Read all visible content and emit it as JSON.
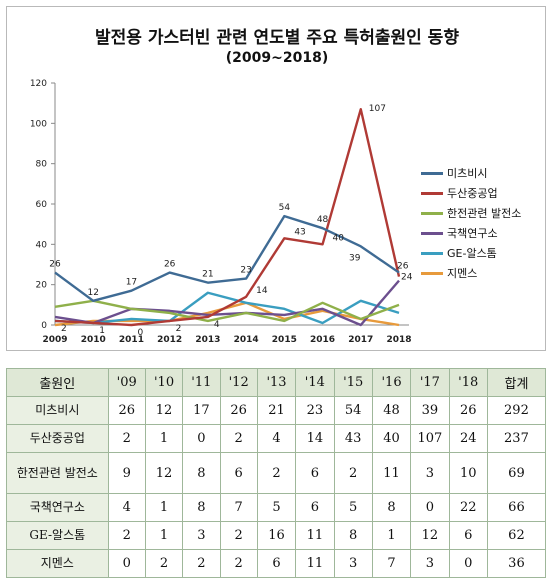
{
  "chart_data": {
    "type": "line",
    "title": "발전용 가스터빈 관련 연도별 주요 특허출원인 동향",
    "subtitle": "(2009~2018)",
    "categories": [
      "2009",
      "2010",
      "2011",
      "2012",
      "2013",
      "2014",
      "2015",
      "2016",
      "2017",
      "2018"
    ],
    "ylim": [
      0,
      120
    ],
    "yticks": [
      0,
      20,
      40,
      60,
      80,
      100,
      120
    ],
    "grid": false,
    "legend_position": "right",
    "series": [
      {
        "name": "미츠비시",
        "color": "#3f6b94",
        "values": [
          26,
          12,
          17,
          26,
          21,
          23,
          54,
          48,
          39,
          26
        ]
      },
      {
        "name": "두산중공업",
        "color": "#b03a35",
        "values": [
          2,
          1,
          0,
          2,
          4,
          14,
          43,
          40,
          107,
          24
        ]
      },
      {
        "name": "한전관련 발전소",
        "color": "#8fb04a",
        "values": [
          9,
          12,
          8,
          6,
          2,
          6,
          2,
          11,
          3,
          10
        ]
      },
      {
        "name": "국책연구소",
        "color": "#6c4f8e",
        "values": [
          4,
          1,
          8,
          7,
          5,
          6,
          5,
          8,
          0,
          22
        ]
      },
      {
        "name": "GE-알스톰",
        "color": "#3a9ec0",
        "values": [
          2,
          1,
          3,
          2,
          16,
          11,
          8,
          1,
          12,
          6
        ]
      },
      {
        "name": "지멘스",
        "color": "#e79a3c",
        "values": [
          0,
          2,
          2,
          2,
          6,
          11,
          3,
          7,
          3,
          0
        ]
      }
    ],
    "data_labels": [
      {
        "series": 0,
        "index": 0,
        "text": "26"
      },
      {
        "series": 0,
        "index": 1,
        "text": "12"
      },
      {
        "series": 0,
        "index": 2,
        "text": "17"
      },
      {
        "series": 0,
        "index": 3,
        "text": "26"
      },
      {
        "series": 0,
        "index": 4,
        "text": "21"
      },
      {
        "series": 0,
        "index": 5,
        "text": "23"
      },
      {
        "series": 0,
        "index": 6,
        "text": "54"
      },
      {
        "series": 0,
        "index": 7,
        "text": "48"
      },
      {
        "series": 0,
        "index": 8,
        "text": "39"
      },
      {
        "series": 0,
        "index": 9,
        "text": "26"
      },
      {
        "series": 1,
        "index": 0,
        "text": "2"
      },
      {
        "series": 1,
        "index": 1,
        "text": "1"
      },
      {
        "series": 1,
        "index": 2,
        "text": "0"
      },
      {
        "series": 1,
        "index": 3,
        "text": "2"
      },
      {
        "series": 1,
        "index": 4,
        "text": "4"
      },
      {
        "series": 1,
        "index": 5,
        "text": "14"
      },
      {
        "series": 1,
        "index": 6,
        "text": "43"
      },
      {
        "series": 1,
        "index": 7,
        "text": "40"
      },
      {
        "series": 1,
        "index": 8,
        "text": "107"
      },
      {
        "series": 1,
        "index": 9,
        "text": "24"
      }
    ]
  },
  "table": {
    "headers": [
      "출원인",
      "'09",
      "'10",
      "'11",
      "'12",
      "'13",
      "'14",
      "'15",
      "'16",
      "'17",
      "'18",
      "합계"
    ],
    "rows": [
      {
        "name": "미츠비시",
        "values": [
          "26",
          "12",
          "17",
          "26",
          "21",
          "23",
          "54",
          "48",
          "39",
          "26",
          "292"
        ]
      },
      {
        "name": "두산중공업",
        "values": [
          "2",
          "1",
          "0",
          "2",
          "4",
          "14",
          "43",
          "40",
          "107",
          "24",
          "237"
        ]
      },
      {
        "name": "한전관련 발전소",
        "values": [
          "9",
          "12",
          "8",
          "6",
          "2",
          "6",
          "2",
          "11",
          "3",
          "10",
          "69"
        ]
      },
      {
        "name": "국책연구소",
        "values": [
          "4",
          "1",
          "8",
          "7",
          "5",
          "6",
          "5",
          "8",
          "0",
          "22",
          "66"
        ]
      },
      {
        "name": "GE-알스톰",
        "values": [
          "2",
          "1",
          "3",
          "2",
          "16",
          "11",
          "8",
          "1",
          "12",
          "6",
          "62"
        ]
      },
      {
        "name": "지멘스",
        "values": [
          "0",
          "2",
          "2",
          "2",
          "6",
          "11",
          "3",
          "7",
          "3",
          "0",
          "36"
        ]
      }
    ]
  }
}
